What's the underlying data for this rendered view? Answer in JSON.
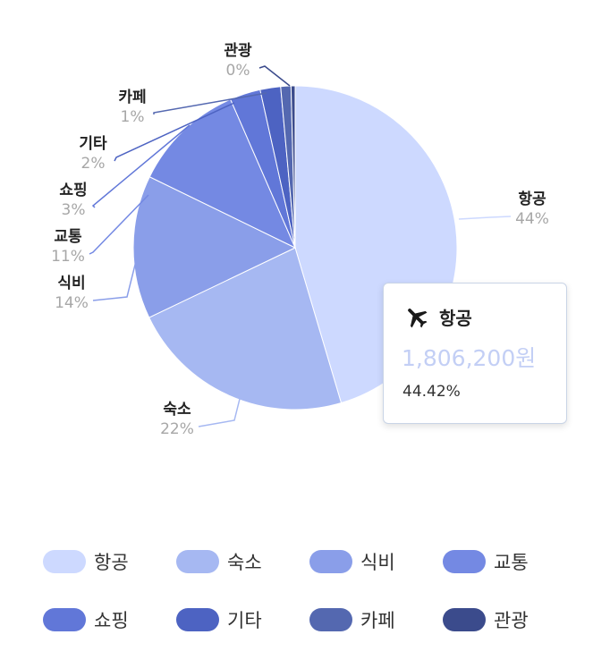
{
  "chart_data": {
    "type": "pie",
    "categories": [
      "항공",
      "숙소",
      "식비",
      "교통",
      "쇼핑",
      "기타",
      "카페",
      "관광"
    ],
    "values": [
      44.42,
      22,
      14,
      11,
      3,
      2,
      1,
      0.4
    ],
    "percent_labels": [
      "44%",
      "22%",
      "14%",
      "11%",
      "3%",
      "2%",
      "1%",
      "0%"
    ],
    "colors": [
      "#cdd9ff",
      "#a6b8f2",
      "#8a9ee9",
      "#7489e3",
      "#6177d8",
      "#4d63c2",
      "#5468b0",
      "#3b4b8c"
    ],
    "legend_position": "bottom"
  },
  "tooltip": {
    "icon": "airplane-icon",
    "category": "항공",
    "amount": "1,806,200원",
    "percent": "44.42%",
    "amount_color": "#c3cff5"
  }
}
